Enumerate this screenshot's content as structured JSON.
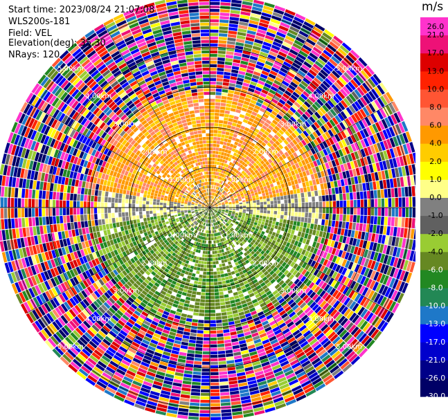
{
  "info": {
    "start_time": "Start time: 2023/08/24 21:07:08",
    "instrument": "WLS200s-181",
    "field": "Field: VEL",
    "elevation": "Elevation(deg): 35.30",
    "nrays": "NRays: 120"
  },
  "colorbar": {
    "unit": "m/s",
    "ticks": [
      "26.0",
      "21.0",
      "17.0",
      "13.0",
      "10.0",
      "8.0",
      "6.0",
      "4.0",
      "2.0",
      "1.0",
      "0.0",
      "-1.0",
      "-2.0",
      "-4.0",
      "-6.0",
      "-8.0",
      "-10.0",
      "-13.0",
      "-17.0",
      "-21.0",
      "-26.0",
      "-30.0"
    ],
    "colors": [
      "#ff33cc",
      "#ee1177",
      "#dd0000",
      "#ff2200",
      "#ff5533",
      "#ff8866",
      "#ff9900",
      "#ffcc00",
      "#ffff00",
      "#ffff88",
      "#808080",
      "#606060",
      "#99cc33",
      "#668822",
      "#228822",
      "#228855",
      "#1e78c8",
      "#0000ff",
      "#0000cc",
      "#000088",
      "#000066"
    ]
  },
  "chart_data": {
    "type": "heatmap",
    "projection": "polar (PPI)",
    "nrays": 120,
    "range_rings_km": [
      1.0,
      2.0,
      3.0,
      4.0,
      5.0
    ],
    "ring_labels": [
      "1.00km",
      "2.00km",
      "3.00km",
      "4.00km",
      "5.00km"
    ],
    "vmin": -30.0,
    "vmax": 26.0,
    "field": "VEL",
    "pattern": {
      "north_sector_velocity": 5,
      "south_sector_velocity": -5,
      "coherent_range_km": 2.8,
      "noise_beyond_km": 3.0
    }
  }
}
